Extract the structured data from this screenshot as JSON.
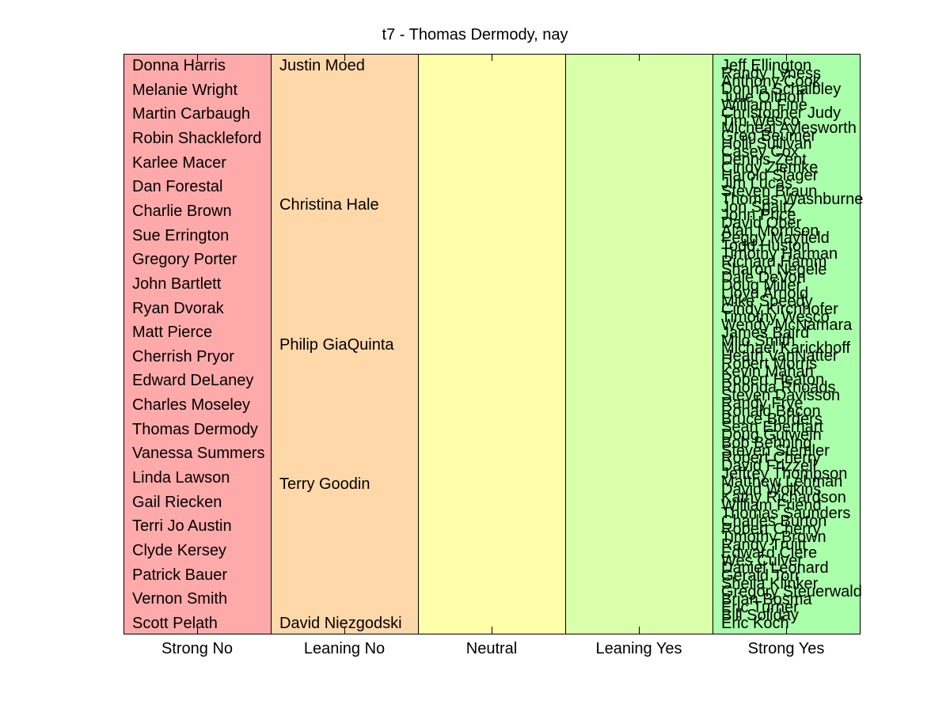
{
  "chart_data": {
    "type": "table",
    "title": "t7 - Thomas Dermody, nay",
    "categories": [
      "Strong No",
      "Leaning No",
      "Neutral",
      "Leaning Yes",
      "Strong Yes"
    ],
    "colors": [
      "#ffaaaa",
      "#ffd8aa",
      "#ffffaa",
      "#d9ffaa",
      "#aaffaa"
    ],
    "columns": [
      {
        "category": "Strong No",
        "names": [
          "Donna Harris",
          "Melanie Wright",
          "Martin Carbaugh",
          "Robin Shackleford",
          "Karlee Macer",
          "Dan Forestal",
          "Charlie Brown",
          "Sue Errington",
          "Gregory Porter",
          "John Bartlett",
          "Ryan Dvorak",
          "Matt Pierce",
          "Cherrish Pryor",
          "Edward DeLaney",
          "Charles Moseley",
          "Thomas Dermody",
          "Vanessa Summers",
          "Linda Lawson",
          "Gail Riecken",
          "Terri Jo Austin",
          "Clyde Kersey",
          "Patrick Bauer",
          "Vernon Smith",
          "Scott Pelath"
        ]
      },
      {
        "category": "Leaning No",
        "names": [
          "Justin Moed",
          "Christina Hale",
          "Philip GiaQuinta",
          "Terry Goodin",
          "David Niezgodski"
        ]
      },
      {
        "category": "Neutral",
        "names": []
      },
      {
        "category": "Leaning Yes",
        "names": []
      },
      {
        "category": "Strong Yes",
        "names": [
          "Jeff Ellington",
          "Randy Lyness",
          "Anthony Cook",
          "Donna Schaibley",
          "Julie Olthoff",
          "William Fine",
          "Christopher Judy",
          "Tim Wesco",
          "Micheal Aylesworth",
          "Greg Beumer",
          "Holli Sullivan",
          "Casey Cox",
          "Dennis Zent",
          "Cindy Ziemke",
          "Harold Slager",
          "Jim Lucas",
          "Steven Braun",
          "Thomas Washburne",
          "Jon Spaltz",
          "John Price",
          "David Ober",
          "Alan Morrison",
          "Peggy Mayfield",
          "Todd Huston",
          "Timothy Harman",
          "Richard Hamm",
          "Sharon Negele",
          "Dale DeVon",
          "Doug Miller",
          "Lloyd Arnold",
          "Mike Speedy",
          "Cindy Kirchhofer",
          "Timothy Wesco",
          "Wendy McNamara",
          "James Baird",
          "Milo Smith",
          "Michael Karickhoff",
          "Heath VanNatter",
          "Robert Morris",
          "Kevin Mahan",
          "Robert Heaton",
          "Rhonda Rhoads",
          "Steven Davisson",
          "Randy Frye",
          "Ronald Bacon",
          "Bruce Borders",
          "Sean Eberhart",
          "Doug Gutwein",
          "Bob Behning",
          "Steven Stemler",
          "Robert Cherry",
          "David Frizzell",
          "Jeffrey Thompson",
          "Matthew Lehman",
          "David Wolkins",
          "Kathy Richardson",
          "William Friend",
          "Thomas Saunders",
          "Charles Burton",
          "Robert Cherry",
          "Timothy Brown",
          "Randy Truitt",
          "Edward Clere",
          "Wes Culver",
          "Daniel Leonard",
          "Gerald Torr",
          "Sheila Klinker",
          "Gregory Steuerwald",
          "Brian Bosma",
          "Eric Turner",
          "Bill Soliday",
          "Eric Koch"
        ]
      }
    ]
  }
}
